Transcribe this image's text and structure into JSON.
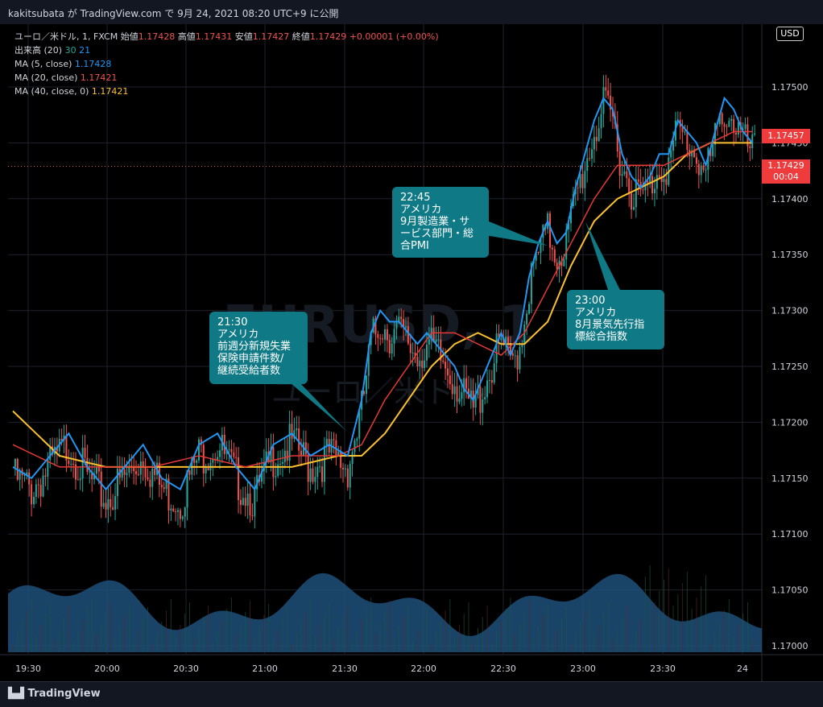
{
  "header": {
    "share_text": "kakitsubata が TradingView.com で 9月 24, 2021 08:20 UTC+9 に公開"
  },
  "legend": {
    "symbol": "ユーロ／米ドル, 1, FXCM",
    "open_label": "始値",
    "open": "1.17428",
    "high_label": "高値",
    "high": "1.17431",
    "low_label": "安値",
    "low": "1.17427",
    "close_label": "終値",
    "close": "1.17429",
    "change": "+0.00001 (+0.00%)",
    "volume_label": "出来高 (20)",
    "volume_1": "30",
    "volume_2": "21",
    "ma5_label": "MA (5, close)",
    "ma5_value": "1.17428",
    "ma20_label": "MA (20, close)",
    "ma20_value": "1.17421",
    "ma40_label": "MA (40, close, 0)",
    "ma40_value": "1.17421"
  },
  "price_tags": {
    "currency": "USD",
    "ma_tag": "1.17457",
    "last_price": "1.17429",
    "countdown": "00:04"
  },
  "watermark": {
    "symbol": "EURUSD, 1",
    "name": "ユーロ／米ドル"
  },
  "annotations": [
    {
      "time": "21:30",
      "lines": [
        "アメリカ",
        "前週分新規失業",
        "保険申請件数/",
        "継続受給者数"
      ]
    },
    {
      "time": "22:45",
      "lines": [
        "アメリカ",
        "9月製造業・サ",
        "ービス部門・総",
        "合PMI"
      ]
    },
    {
      "time": "23:00",
      "lines": [
        "アメリカ",
        "8月景気先行指",
        "標総合指数"
      ]
    }
  ],
  "footer": {
    "brand": "TradingView"
  },
  "colors": {
    "up": "#26a69a",
    "down": "#ef5350",
    "ma5": "#2196f3",
    "ma20": "#e53935",
    "ma40": "#fbc02d",
    "volume_area": "#1e4f7a",
    "annotation_bg": "#0f7a86"
  },
  "chart_data": {
    "type": "candlestick",
    "symbol": "EURUSD",
    "timeframe": "1",
    "yaxis": {
      "ylim": [
        1.1698,
        1.1753
      ],
      "ticks": [
        "1.17000",
        "1.17050",
        "1.17100",
        "1.17150",
        "1.17200",
        "1.17250",
        "1.17300",
        "1.17350",
        "1.17400",
        "1.17450",
        "1.17500"
      ]
    },
    "xaxis": {
      "ticks": [
        "19:30",
        "20:00",
        "20:30",
        "21:00",
        "21:30",
        "22:00",
        "22:30",
        "23:00",
        "23:30",
        "24"
      ]
    },
    "price_path": [
      [
        0,
        1.1716
      ],
      [
        8,
        1.1715
      ],
      [
        16,
        1.1717
      ],
      [
        24,
        1.1719
      ],
      [
        32,
        1.1716
      ],
      [
        40,
        1.1714
      ],
      [
        48,
        1.1716
      ],
      [
        56,
        1.1718
      ],
      [
        64,
        1.1715
      ],
      [
        72,
        1.1714
      ],
      [
        80,
        1.1718
      ],
      [
        88,
        1.1719
      ],
      [
        96,
        1.1716
      ],
      [
        104,
        1.1714
      ],
      [
        112,
        1.1718
      ],
      [
        120,
        1.1719
      ],
      [
        128,
        1.1717
      ],
      [
        136,
        1.1718
      ],
      [
        144,
        1.1717
      ],
      [
        150,
        1.1722
      ],
      [
        154,
        1.1728
      ],
      [
        158,
        1.173
      ],
      [
        162,
        1.1729
      ],
      [
        166,
        1.1729
      ],
      [
        170,
        1.1728
      ],
      [
        174,
        1.1727
      ],
      [
        178,
        1.1728
      ],
      [
        182,
        1.1727
      ],
      [
        186,
        1.1726
      ],
      [
        190,
        1.1725
      ],
      [
        194,
        1.1723
      ],
      [
        198,
        1.1722
      ],
      [
        202,
        1.1724
      ],
      [
        206,
        1.1726
      ],
      [
        210,
        1.1728
      ],
      [
        214,
        1.1726
      ],
      [
        218,
        1.1728
      ],
      [
        222,
        1.1733
      ],
      [
        226,
        1.1736
      ],
      [
        230,
        1.1738
      ],
      [
        234,
        1.1736
      ],
      [
        238,
        1.1737
      ],
      [
        242,
        1.1741
      ],
      [
        246,
        1.1744
      ],
      [
        250,
        1.1747
      ],
      [
        254,
        1.1749
      ],
      [
        258,
        1.1748
      ],
      [
        262,
        1.1744
      ],
      [
        266,
        1.1742
      ],
      [
        270,
        1.1741
      ],
      [
        274,
        1.1742
      ],
      [
        278,
        1.1744
      ],
      [
        282,
        1.1744
      ],
      [
        286,
        1.1747
      ],
      [
        290,
        1.1746
      ],
      [
        294,
        1.1745
      ],
      [
        298,
        1.1743
      ],
      [
        302,
        1.1746
      ],
      [
        306,
        1.1749
      ],
      [
        310,
        1.1748
      ],
      [
        314,
        1.1746
      ],
      [
        318,
        1.1745
      ]
    ],
    "ma20_path": [
      [
        0,
        1.1718
      ],
      [
        20,
        1.1716
      ],
      [
        40,
        1.1716
      ],
      [
        60,
        1.1716
      ],
      [
        80,
        1.1717
      ],
      [
        100,
        1.1716
      ],
      [
        120,
        1.1717
      ],
      [
        140,
        1.1717
      ],
      [
        150,
        1.1718
      ],
      [
        160,
        1.1722
      ],
      [
        170,
        1.1725
      ],
      [
        180,
        1.1728
      ],
      [
        190,
        1.1728
      ],
      [
        200,
        1.1727
      ],
      [
        210,
        1.1726
      ],
      [
        220,
        1.1728
      ],
      [
        230,
        1.1732
      ],
      [
        240,
        1.1736
      ],
      [
        250,
        1.174
      ],
      [
        260,
        1.1743
      ],
      [
        270,
        1.1743
      ],
      [
        280,
        1.1743
      ],
      [
        290,
        1.1744
      ],
      [
        300,
        1.1745
      ],
      [
        310,
        1.1746
      ],
      [
        318,
        1.1746
      ]
    ],
    "ma40_path": [
      [
        0,
        1.1721
      ],
      [
        10,
        1.1719
      ],
      [
        20,
        1.1717
      ],
      [
        40,
        1.1716
      ],
      [
        60,
        1.1716
      ],
      [
        80,
        1.1716
      ],
      [
        100,
        1.1716
      ],
      [
        120,
        1.1716
      ],
      [
        140,
        1.1717
      ],
      [
        150,
        1.1717
      ],
      [
        160,
        1.1719
      ],
      [
        170,
        1.1722
      ],
      [
        180,
        1.1725
      ],
      [
        190,
        1.1727
      ],
      [
        200,
        1.1728
      ],
      [
        210,
        1.1727
      ],
      [
        220,
        1.1727
      ],
      [
        230,
        1.1729
      ],
      [
        240,
        1.1734
      ],
      [
        250,
        1.1738
      ],
      [
        260,
        1.174
      ],
      [
        270,
        1.1741
      ],
      [
        280,
        1.1742
      ],
      [
        290,
        1.1744
      ],
      [
        300,
        1.1745
      ],
      [
        310,
        1.1745
      ],
      [
        318,
        1.1745
      ]
    ]
  }
}
